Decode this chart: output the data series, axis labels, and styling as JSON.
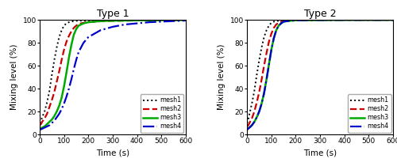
{
  "title1": "Type 1",
  "title2": "Type 2",
  "xlabel": "Time (s)",
  "ylabel": "Mixing level (%)",
  "xlim": [
    0,
    600
  ],
  "ylim": [
    0,
    100
  ],
  "xticks": [
    0,
    100,
    200,
    300,
    400,
    500,
    600
  ],
  "yticks": [
    0,
    20,
    40,
    60,
    80,
    100
  ],
  "legend_labels": [
    "mesh1",
    "mesh2",
    "mesh3",
    "mesh4"
  ],
  "colors": [
    "black",
    "#cc0000",
    "#00aa00",
    "#0000cc"
  ],
  "linestyles": [
    ":",
    "--",
    "-",
    "-."
  ],
  "linewidths": [
    1.4,
    1.6,
    1.8,
    1.6
  ],
  "type1": {
    "mesh1": {
      "t": [
        0,
        5,
        10,
        20,
        30,
        40,
        50,
        60,
        70,
        80,
        90,
        100,
        110,
        120,
        130,
        140,
        150,
        200,
        300,
        400,
        500,
        600
      ],
      "v": [
        10,
        12,
        15,
        20,
        28,
        38,
        52,
        65,
        76,
        85,
        91,
        95,
        97,
        98,
        98.5,
        99,
        99.2,
        99.5,
        99.7,
        99.8,
        99.9,
        100
      ]
    },
    "mesh2": {
      "t": [
        0,
        5,
        10,
        20,
        30,
        40,
        50,
        60,
        70,
        80,
        90,
        100,
        110,
        120,
        130,
        140,
        150,
        160,
        180,
        200,
        250,
        300,
        400,
        500,
        600
      ],
      "v": [
        8,
        9,
        11,
        14,
        18,
        24,
        30,
        37,
        46,
        55,
        65,
        74,
        81,
        86,
        90,
        93,
        95,
        96.5,
        97.5,
        98,
        98.8,
        99.2,
        99.5,
        99.7,
        99.9
      ]
    },
    "mesh3": {
      "t": [
        0,
        5,
        10,
        20,
        30,
        40,
        50,
        60,
        70,
        80,
        90,
        100,
        110,
        120,
        130,
        140,
        150,
        160,
        180,
        200,
        250,
        300,
        400,
        500,
        600
      ],
      "v": [
        5,
        5.5,
        6,
        7,
        9,
        11,
        13,
        16,
        20,
        25,
        32,
        42,
        54,
        67,
        78,
        87,
        92,
        95,
        97,
        98,
        99,
        99.3,
        99.6,
        99.8,
        99.9
      ]
    },
    "mesh4": {
      "t": [
        0,
        5,
        10,
        20,
        30,
        40,
        50,
        60,
        70,
        80,
        90,
        100,
        110,
        120,
        130,
        140,
        150,
        160,
        180,
        200,
        250,
        300,
        350,
        400,
        450,
        500,
        550,
        600
      ],
      "v": [
        4,
        4.5,
        5,
        6,
        7,
        8,
        10,
        12,
        15,
        18,
        22,
        27,
        33,
        40,
        48,
        57,
        65,
        72,
        80,
        85,
        91,
        94,
        96,
        97,
        98,
        98.5,
        99,
        99.5
      ]
    }
  },
  "type2": {
    "mesh1": {
      "t": [
        0,
        5,
        10,
        20,
        30,
        40,
        50,
        60,
        70,
        80,
        90,
        100,
        110,
        120,
        130,
        150,
        200,
        300,
        400,
        500,
        600
      ],
      "v": [
        10,
        13,
        18,
        27,
        38,
        52,
        65,
        76,
        85,
        91,
        95,
        97.5,
        98.5,
        99,
        99.3,
        99.6,
        99.8,
        99.9,
        100,
        100,
        100
      ]
    },
    "mesh2": {
      "t": [
        0,
        5,
        10,
        20,
        30,
        40,
        50,
        60,
        70,
        80,
        90,
        100,
        110,
        120,
        130,
        140,
        150,
        180,
        200,
        250,
        300,
        400,
        500,
        600
      ],
      "v": [
        7,
        8,
        10,
        14,
        20,
        28,
        37,
        48,
        60,
        71,
        81,
        88,
        93,
        96,
        97.5,
        98.5,
        99,
        99.5,
        99.7,
        99.9,
        100,
        100,
        100,
        100
      ]
    },
    "mesh3": {
      "t": [
        0,
        5,
        10,
        20,
        30,
        40,
        50,
        60,
        70,
        80,
        90,
        100,
        110,
        120,
        130,
        140,
        150,
        180,
        200,
        250,
        300,
        400,
        500,
        600
      ],
      "v": [
        5,
        5.5,
        6,
        8,
        11,
        15,
        20,
        27,
        36,
        48,
        61,
        74,
        84,
        91,
        95,
        97,
        98.5,
        99.3,
        99.6,
        99.8,
        99.9,
        100,
        100,
        100
      ]
    },
    "mesh4": {
      "t": [
        0,
        5,
        10,
        20,
        30,
        40,
        50,
        60,
        70,
        80,
        90,
        100,
        110,
        120,
        130,
        140,
        150,
        180,
        200,
        250,
        300,
        400,
        500,
        600
      ],
      "v": [
        4,
        5,
        6,
        8,
        11,
        15,
        20,
        27,
        36,
        48,
        61,
        74,
        84,
        91,
        95,
        97,
        98.5,
        99.3,
        99.6,
        99.8,
        99.9,
        100,
        100,
        100
      ]
    }
  }
}
